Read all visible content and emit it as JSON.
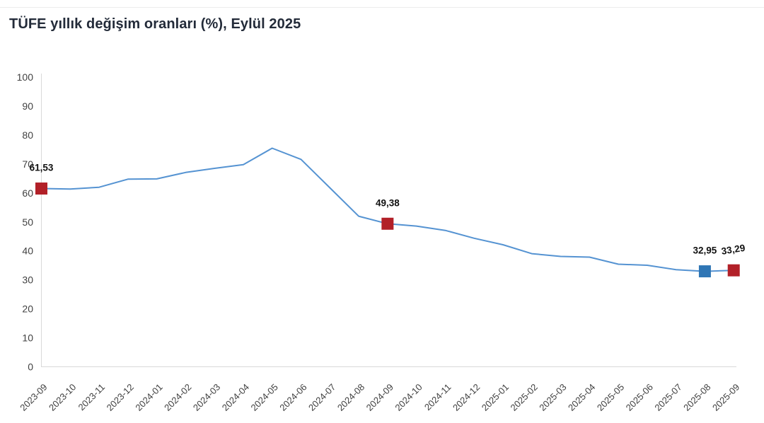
{
  "chart_data": {
    "type": "line",
    "title": "TÜFE yıllık değişim oranları (%), Eylül 2025",
    "xlabel": "",
    "ylabel": "",
    "ylim": [
      0,
      100
    ],
    "y_ticks": [
      0,
      10,
      20,
      30,
      40,
      50,
      60,
      70,
      80,
      90,
      100
    ],
    "grid": false,
    "legend": "none",
    "line_color": "#5593d2",
    "axis_color": "#d9d9d9",
    "categories": [
      "2023-09",
      "2023-10",
      "2023-11",
      "2023-12",
      "2024-01",
      "2024-02",
      "2024-03",
      "2024-04",
      "2024-05",
      "2024-06",
      "2024-07",
      "2024-08",
      "2024-09",
      "2024-10",
      "2024-11",
      "2024-12",
      "2025-01",
      "2025-02",
      "2025-03",
      "2025-04",
      "2025-05",
      "2025-06",
      "2025-07",
      "2025-08",
      "2025-09"
    ],
    "series": [
      {
        "name": "TÜFE yıllık değişim oranı (%)",
        "values": [
          61.53,
          61.36,
          61.98,
          64.77,
          64.86,
          67.07,
          68.5,
          69.8,
          75.45,
          71.6,
          61.78,
          51.97,
          49.38,
          48.58,
          47.09,
          44.38,
          42.12,
          39.05,
          38.1,
          37.86,
          35.41,
          35.05,
          33.52,
          32.95,
          33.29
        ]
      }
    ],
    "annotated_points": [
      {
        "category": "2023-09",
        "index": 0,
        "value": 61.53,
        "label": "61,53",
        "marker_color": "#b22028",
        "label_rotation": 0
      },
      {
        "category": "2024-09",
        "index": 12,
        "value": 49.38,
        "label": "49,38",
        "marker_color": "#b22028",
        "label_rotation": 0
      },
      {
        "category": "2025-08",
        "index": 23,
        "value": 32.95,
        "label": "32,95",
        "marker_color": "#2f76b5",
        "label_rotation": 0
      },
      {
        "category": "2025-09",
        "index": 24,
        "value": 33.29,
        "label": "33,29",
        "marker_color": "#b22028",
        "label_rotation": -9
      }
    ]
  }
}
